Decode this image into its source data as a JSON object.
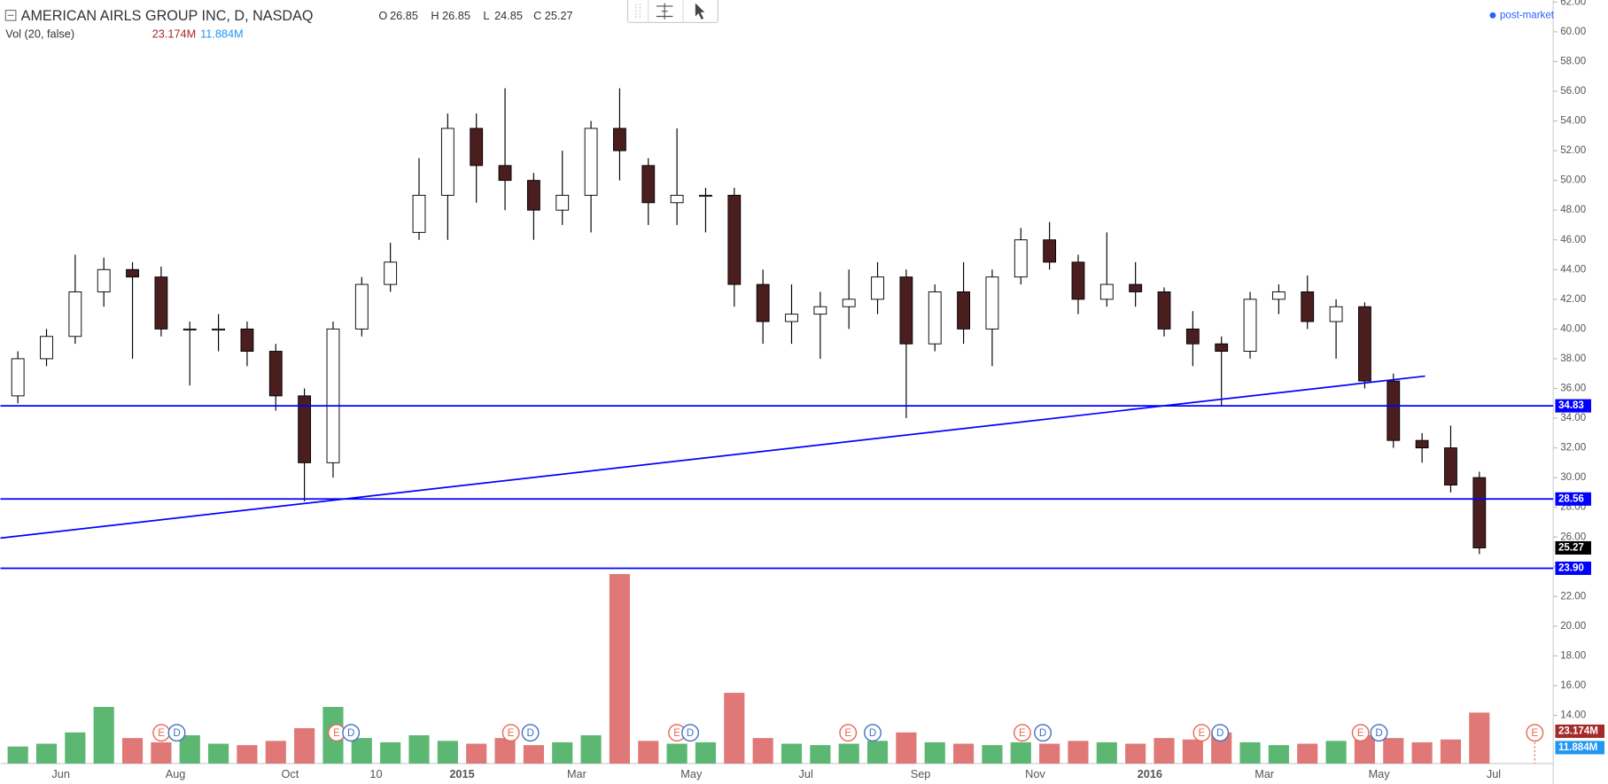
{
  "header": {
    "symbol": "AMERICAN AIRLS GROUP INC, D, NASDAQ",
    "ohlc": [
      {
        "key": "O",
        "value": 26.85
      },
      {
        "key": "H",
        "value": 26.85
      },
      {
        "key": "L",
        "value": 24.85
      },
      {
        "key": "C",
        "value": 25.27
      }
    ],
    "volume": {
      "label": "Vol (20, false)",
      "last": "23.174M",
      "ma": "11.884M"
    },
    "post_market": "post-market"
  },
  "events": [
    "E",
    "D",
    "E",
    "D",
    "E",
    "D",
    "E",
    "D",
    "E",
    "D",
    "E",
    "D",
    "E",
    "D",
    "E",
    "D",
    "E"
  ],
  "chart_data": {
    "type": "candlestick",
    "categories": [
      null,
      null,
      "Jun",
      null,
      null,
      null,
      "Aug",
      null,
      null,
      null,
      "Oct",
      null,
      null,
      "10",
      null,
      null,
      "2015",
      null,
      null,
      null,
      "Mar",
      null,
      null,
      null,
      "May",
      null,
      null,
      null,
      "Jul",
      null,
      null,
      null,
      "Sep",
      null,
      null,
      null,
      "Nov",
      null,
      null,
      null,
      "2016",
      null,
      null,
      null,
      "Mar",
      null,
      null,
      null,
      "May",
      null,
      null,
      null,
      "Jul"
    ],
    "open": [
      35.5,
      38,
      39.5,
      42.5,
      44,
      43.5,
      40,
      40,
      40,
      38.5,
      35.5,
      31,
      40,
      43,
      46.5,
      49,
      53.5,
      51,
      50,
      48,
      49,
      53.5,
      51,
      48.5,
      49,
      49,
      43,
      40.5,
      41,
      41.5,
      42,
      43.5,
      39,
      42.5,
      40,
      43.5,
      46,
      44.5,
      42,
      43,
      42.5,
      40,
      39,
      38.5,
      42,
      42.5,
      40.5,
      41.5,
      36.5,
      32.5,
      32,
      30,
      null
    ],
    "high": [
      38.5,
      40,
      45,
      44.8,
      44.5,
      44.2,
      40.5,
      41,
      40.5,
      39,
      36,
      40.5,
      43.5,
      45.8,
      51.5,
      54.5,
      54.5,
      56.2,
      50.5,
      52,
      54,
      56.2,
      51.5,
      53.5,
      49.5,
      49.5,
      44,
      43,
      42.5,
      44,
      44.5,
      44,
      43,
      44.5,
      44,
      46.8,
      47.2,
      45,
      46.5,
      44.5,
      42.8,
      41.2,
      39.5,
      42.5,
      43,
      43.6,
      42,
      41.8,
      37,
      33,
      33.5,
      30.4,
      null
    ],
    "low": [
      35,
      37.5,
      39,
      41.5,
      38,
      39.5,
      36.2,
      38.5,
      37.5,
      34.5,
      28.4,
      30,
      39.5,
      42.5,
      46,
      46,
      48.5,
      48,
      46,
      47,
      46.5,
      50,
      47,
      47,
      46.5,
      41.5,
      39,
      39,
      38,
      40,
      41,
      34,
      38.5,
      39,
      37.5,
      43,
      44,
      41,
      41.5,
      41.5,
      39.5,
      37.5,
      34.8,
      38,
      41,
      40,
      38,
      36,
      32,
      31,
      29,
      24.85,
      null
    ],
    "close": [
      38,
      39.5,
      42.5,
      44,
      43.5,
      40,
      40,
      40,
      38.5,
      35.5,
      31,
      40,
      43,
      44.5,
      49,
      53.5,
      51,
      50,
      48,
      49,
      53.5,
      52,
      48.5,
      49,
      49,
      43,
      40.5,
      41,
      41.5,
      42,
      43.5,
      39,
      42.5,
      40,
      43.5,
      46,
      44.5,
      42,
      43,
      42.5,
      40,
      39,
      38.5,
      42,
      42.5,
      40.5,
      41.5,
      36.5,
      32.5,
      32,
      29.5,
      25.27,
      null
    ],
    "volume": [
      12,
      14,
      22,
      40,
      18,
      15,
      20,
      14,
      13,
      16,
      25,
      40,
      18,
      15,
      20,
      16,
      14,
      18,
      13,
      15,
      20,
      134,
      16,
      14,
      15,
      50,
      18,
      14,
      13,
      14,
      16,
      22,
      15,
      14,
      13,
      15,
      14,
      16,
      15,
      14,
      18,
      17,
      22,
      15,
      13,
      14,
      16,
      20,
      18,
      15,
      17,
      36,
      null
    ],
    "ylim": [
      10.76,
      62.14
    ],
    "yticks": [
      {
        "value": 14,
        "label": "14.00"
      },
      {
        "value": 16,
        "label": "16.00"
      },
      {
        "value": 18,
        "label": "18.00"
      },
      {
        "value": 20,
        "label": "20.00"
      },
      {
        "value": 22,
        "label": "22.00"
      },
      {
        "value": 24,
        "label": "24.00"
      },
      {
        "value": 26,
        "label": "26.00"
      },
      {
        "value": 28,
        "label": "28.00"
      },
      {
        "value": 30,
        "label": "30.00"
      },
      {
        "value": 32,
        "label": "32.00"
      },
      {
        "value": 34,
        "label": "34.00"
      },
      {
        "value": 36,
        "label": "36.00"
      },
      {
        "value": 38,
        "label": "38.00"
      },
      {
        "value": 40,
        "label": "40.00"
      },
      {
        "value": 42,
        "label": "42.00"
      },
      {
        "value": 44,
        "label": "44.00"
      },
      {
        "value": 46,
        "label": "46.00"
      },
      {
        "value": 48,
        "label": "48.00"
      },
      {
        "value": 50,
        "label": "50.00"
      },
      {
        "value": 52,
        "label": "52.00"
      },
      {
        "value": 54,
        "label": "54.00"
      },
      {
        "value": 56,
        "label": "56.00"
      },
      {
        "value": 58,
        "label": "58.00"
      },
      {
        "value": 60,
        "label": "60.00"
      },
      {
        "value": 62,
        "label": "62.00"
      }
    ],
    "volume_lim": [
      0,
      540
    ],
    "hlines": [
      34.83,
      28.56,
      {
        "value": 23.9,
        "label": "23.90"
      }
    ],
    "up_color": "#ffffff",
    "down_color": "#4a1e1e",
    "wick_color": "#000000",
    "volume_up_color": "#3faa5b",
    "volume_down_color": "#d9605f",
    "line_color": "#0000ff",
    "grid": false
  }
}
